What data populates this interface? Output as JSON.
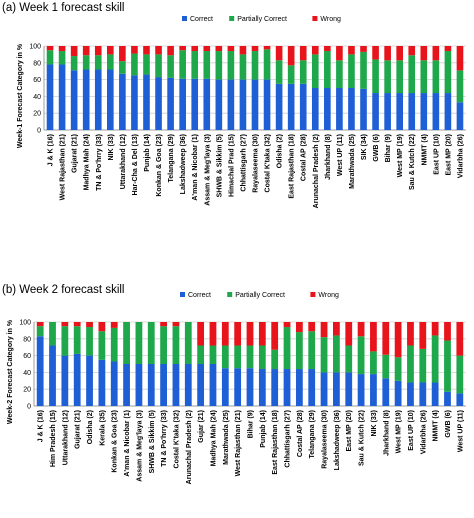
{
  "chart_data": [
    {
      "type": "bar",
      "stacked": true,
      "title": "(a)  Week 1 forecast skill",
      "ylabel": "Week-1 Forecast Category in %",
      "ylim": [
        0,
        100
      ],
      "yticks": [
        "0",
        "20",
        "40",
        "60",
        "80",
        "100"
      ],
      "grid": true,
      "legend_position": "top-right",
      "categories": [
        "J & K (16)",
        "West Rajasthan (21)",
        "Gujarat (21)",
        "Madhya Mah (24)",
        "TN & Po'hrry (33)",
        "NIK (33)",
        "Uttarakhand (12)",
        "Har-Cha & Del (13)",
        "Punjab (14)",
        "Konkan & Goa (23)",
        "Telangana (29)",
        "Lakshadweep (36)",
        "A'man & Nicobar (1)",
        "Assam & Meg'laya (3)",
        "SHWB & Sikkim (5)",
        "Himachal Prad (15)",
        "Chhattisgarh (27)",
        "Rayalaseema (30)",
        "Costal K'taka (32)",
        "Odisha (2)",
        "East Rajasthan (18)",
        "Costal AP (28)",
        "Arunachal Pradesh (2)",
        "Jharkhand (8)",
        "West UP (11)",
        "Marathwada (25)",
        "SIK (34)",
        "GWB (6)",
        "Bihar (9)",
        "West MP (19)",
        "Sau & Kutch (22)",
        "NMMT (4)",
        "East UP (10)",
        "East MP (20)",
        "Vidarbha (26)"
      ],
      "series": [
        {
          "name": "Correct",
          "color": "#1f5fd6",
          "values": [
            78,
            78,
            71,
            72,
            72,
            72,
            67,
            65,
            66,
            63,
            62,
            61,
            61,
            61,
            60,
            60,
            60,
            60,
            60,
            55,
            55,
            55,
            50,
            50,
            50,
            50,
            49,
            44,
            44,
            44,
            44,
            44,
            44,
            44,
            33
          ]
        },
        {
          "name": "Partially Correct",
          "color": "#1fa84b",
          "values": [
            17,
            16,
            17,
            17,
            17,
            18,
            15,
            26,
            24,
            27,
            27,
            34,
            33,
            33,
            34,
            34,
            30,
            34,
            36,
            28,
            22,
            28,
            40,
            44,
            33,
            40,
            44,
            40,
            39,
            39,
            45,
            39,
            39,
            50,
            38
          ]
        },
        {
          "name": "Wrong",
          "color": "#e8141c",
          "values": [
            5,
            6,
            12,
            11,
            11,
            10,
            18,
            9,
            10,
            10,
            11,
            5,
            6,
            6,
            6,
            6,
            10,
            6,
            4,
            17,
            23,
            17,
            10,
            6,
            17,
            10,
            7,
            16,
            17,
            17,
            11,
            17,
            17,
            6,
            29
          ]
        }
      ]
    },
    {
      "type": "bar",
      "stacked": true,
      "title": "(b)  Week 2 forecast skill",
      "ylabel": "Week-2 Forecast Category in %",
      "ylim": [
        0,
        100
      ],
      "yticks": [
        "0",
        "20",
        "40",
        "60",
        "80",
        "100"
      ],
      "grid": true,
      "legend_position": "top-center",
      "categories": [
        "J & K (16)",
        "Him Pradesh (15)",
        "Uttarakhand (12)",
        "Gujarat (21)",
        "Odisha (2)",
        "Kerala (35)",
        "Konkan & Goa (23)",
        "A'man & Nicobar (1)",
        "Assam & Meg'laya (3)",
        "SHWB & Sikkim (5)",
        "TN & Po'hrry (33)",
        "Costal K'taka (32)",
        "Arunachal Pradesh (2)",
        "Gujar (21)",
        "Madhya Mah (24)",
        "Marathwada (25)",
        "West Rajasthan (21)",
        "Bihar (9)",
        "Punjab (14)",
        "East Rajasthan (18)",
        "Chhattisgarh (27)",
        "Costal AP (28)",
        "Telangana (29)",
        "Rayalaseema (30)",
        "Lakshadweep (36)",
        "East MP (20)",
        "Sau & Kutch (22)",
        "NIK (33)",
        "Jharkhand (8)",
        "West MP (19)",
        "East UP (10)",
        "Vidarbha (26)",
        "NMMT (4)",
        "GWB (6)",
        "West UP (11)"
      ],
      "series": [
        {
          "name": "Correct",
          "color": "#1f5fd6",
          "values": [
            83,
            72,
            60,
            62,
            60,
            55,
            53,
            50,
            50,
            50,
            50,
            50,
            50,
            50,
            50,
            45,
            45,
            45,
            44,
            44,
            44,
            44,
            44,
            40,
            40,
            40,
            38,
            38,
            33,
            30,
            28,
            28,
            28,
            17,
            15
          ]
        },
        {
          "name": "Partially Correct",
          "color": "#1fa84b",
          "values": [
            12,
            28,
            35,
            33,
            34,
            34,
            40,
            50,
            50,
            50,
            45,
            45,
            50,
            22,
            22,
            27,
            27,
            27,
            28,
            23,
            50,
            44,
            45,
            42,
            44,
            32,
            45,
            27,
            28,
            28,
            44,
            40,
            56,
            61,
            45
          ]
        },
        {
          "name": "Wrong",
          "color": "#e8141c",
          "values": [
            5,
            0,
            5,
            5,
            6,
            11,
            7,
            0,
            0,
            0,
            5,
            5,
            0,
            28,
            28,
            28,
            28,
            28,
            28,
            33,
            6,
            12,
            11,
            18,
            16,
            28,
            17,
            35,
            39,
            42,
            28,
            32,
            16,
            22,
            40
          ]
        }
      ]
    }
  ]
}
